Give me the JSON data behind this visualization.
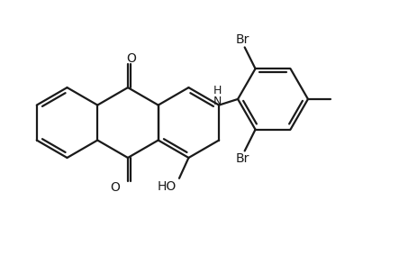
{
  "bg_color": "#ffffff",
  "line_color": "#1a1a1a",
  "line_width": 1.6,
  "figsize": [
    4.53,
    2.84
  ],
  "dpi": 100,
  "xlim": [
    0,
    9.5
  ],
  "ylim": [
    0,
    5.95
  ]
}
